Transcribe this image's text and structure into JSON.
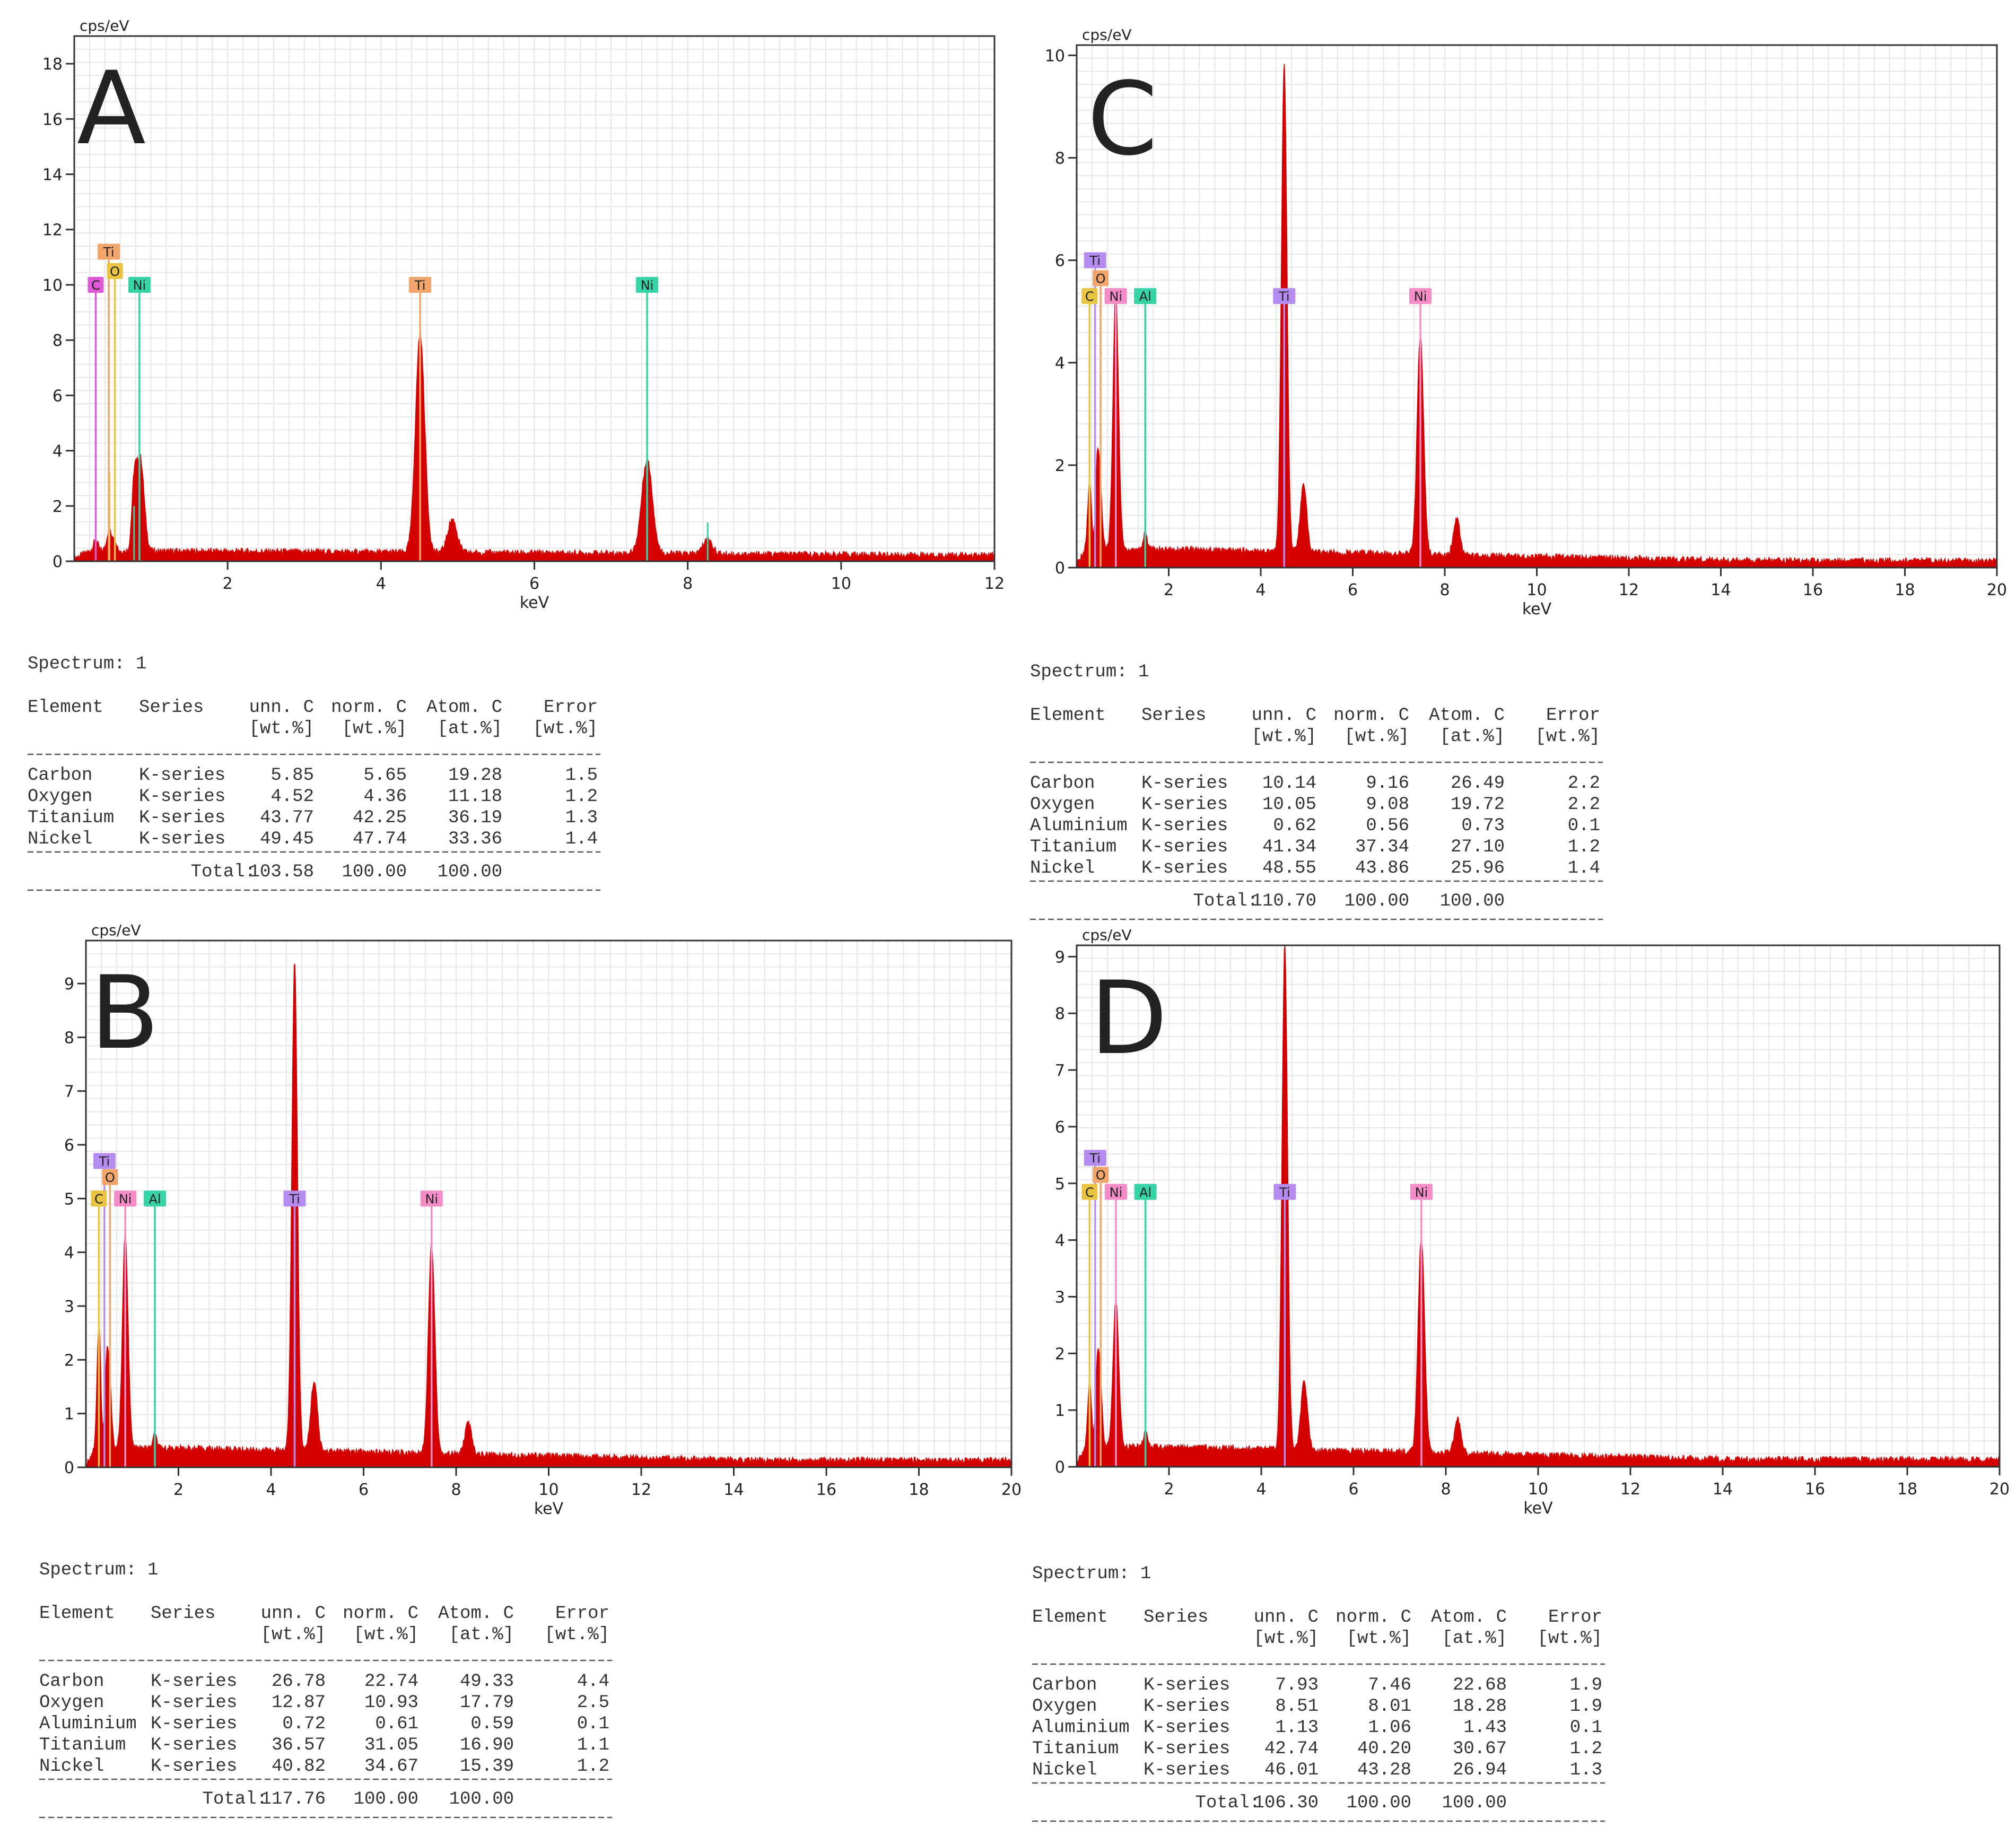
{
  "colors": {
    "spectrum_fill": "#d40000",
    "frame": "#333333",
    "grid": "#e6e6e6",
    "text": "#222222",
    "C": "#e05ad8",
    "O": "#e8c442",
    "Ti": "#f2a56a",
    "Ni": "#36d3a6",
    "Al": "#36d3a6",
    "Ti_bcd": "#b48cf0",
    "Ni_bcd": "#f58cc8"
  },
  "chart_data": [
    {
      "type": "area",
      "panel": "A",
      "ylabel": "cps/eV",
      "xlabel": "keV",
      "xlim": [
        0,
        12
      ],
      "ylim": [
        0,
        19
      ],
      "xticks": [
        2,
        4,
        6,
        8,
        10,
        12
      ],
      "yticks": [
        0,
        2,
        4,
        6,
        8,
        10,
        12,
        14,
        16,
        18
      ],
      "grid": true,
      "background_level": 0.25,
      "peaks": [
        {
          "x": 0.28,
          "height": 0.4,
          "width": 0.03
        },
        {
          "x": 0.45,
          "height": 0.7,
          "width": 0.03
        },
        {
          "x": 0.52,
          "height": 0.5,
          "width": 0.03
        },
        {
          "x": 0.78,
          "height": 2.0,
          "width": 0.03
        },
        {
          "x": 0.86,
          "height": 3.4,
          "width": 0.05
        },
        {
          "x": 4.51,
          "height": 7.9,
          "width": 0.06
        },
        {
          "x": 4.93,
          "height": 1.2,
          "width": 0.06
        },
        {
          "x": 7.47,
          "height": 3.4,
          "width": 0.07
        },
        {
          "x": 8.26,
          "height": 0.55,
          "width": 0.06
        }
      ],
      "markers": [
        {
          "el": "C",
          "x": 0.28,
          "line_top": 10.0,
          "label_y": 10.0,
          "color_key": "C"
        },
        {
          "el": "Ti",
          "x": 0.45,
          "line_top": 11.2,
          "label_y": 11.2,
          "color_key": "Ti"
        },
        {
          "el": "O",
          "x": 0.53,
          "line_top": 10.5,
          "label_y": 10.5,
          "color_key": "O"
        },
        {
          "el": "Ni",
          "x": 0.85,
          "line_top": 10.0,
          "label_y": 10.0,
          "color_key": "Ni"
        },
        {
          "el": "Ti",
          "x": 4.51,
          "line_top": 10.0,
          "label_y": 10.0,
          "color_key": "Ti"
        },
        {
          "el": "Ni",
          "x": 7.47,
          "line_top": 10.0,
          "label_y": 10.0,
          "color_key": "Ni"
        }
      ],
      "thin_lines": [
        {
          "x": 0.46,
          "top": 3.2,
          "color_key": "O"
        },
        {
          "x": 0.78,
          "top": 2.0,
          "color_key": "Ni"
        },
        {
          "x": 7.47,
          "top": 4.9,
          "color_key": "Ni"
        },
        {
          "x": 8.26,
          "top": 1.4,
          "color_key": "Ni"
        }
      ]
    },
    {
      "type": "area",
      "panel": "B",
      "ylabel": "cps/eV",
      "xlabel": "keV",
      "xlim": [
        0,
        20
      ],
      "ylim": [
        0,
        9.8
      ],
      "xticks": [
        2,
        4,
        6,
        8,
        10,
        12,
        14,
        16,
        18,
        20
      ],
      "yticks": [
        0,
        1,
        2,
        3,
        4,
        5,
        6,
        7,
        8,
        9
      ],
      "grid": true,
      "background_level": 0.3,
      "peaks": [
        {
          "x": 0.28,
          "height": 2.3,
          "width": 0.04
        },
        {
          "x": 0.45,
          "height": 1.6,
          "width": 0.04
        },
        {
          "x": 0.52,
          "height": 1.0,
          "width": 0.04
        },
        {
          "x": 0.85,
          "height": 4.0,
          "width": 0.06
        },
        {
          "x": 1.49,
          "height": 0.25,
          "width": 0.04
        },
        {
          "x": 4.51,
          "height": 9.1,
          "width": 0.06
        },
        {
          "x": 4.93,
          "height": 1.3,
          "width": 0.07
        },
        {
          "x": 7.47,
          "height": 3.9,
          "width": 0.07
        },
        {
          "x": 8.26,
          "height": 0.6,
          "width": 0.07
        }
      ],
      "markers": [
        {
          "el": "Ti",
          "x": 0.4,
          "line_top": 5.7,
          "label_y": 5.7,
          "color_key": "Ti_bcd"
        },
        {
          "el": "O",
          "x": 0.52,
          "line_top": 5.4,
          "label_y": 5.4,
          "color_key": "Ti"
        },
        {
          "el": "C",
          "x": 0.28,
          "line_top": 5.0,
          "label_y": 5.0,
          "color_key": "O"
        },
        {
          "el": "Ni",
          "x": 0.85,
          "line_top": 5.0,
          "label_y": 5.0,
          "color_key": "Ni_bcd"
        },
        {
          "el": "Al",
          "x": 1.49,
          "line_top": 5.0,
          "label_y": 5.0,
          "color_key": "Al"
        },
        {
          "el": "Ti",
          "x": 4.51,
          "line_top": 5.0,
          "label_y": 5.0,
          "color_key": "Ti_bcd"
        },
        {
          "el": "Ni",
          "x": 7.47,
          "line_top": 5.0,
          "label_y": 5.0,
          "color_key": "Ni_bcd"
        }
      ],
      "thin_lines": []
    },
    {
      "type": "area",
      "panel": "C",
      "ylabel": "cps/eV",
      "xlabel": "keV",
      "xlim": [
        0,
        20
      ],
      "ylim": [
        0,
        10.2
      ],
      "xticks": [
        2,
        4,
        6,
        8,
        10,
        12,
        14,
        16,
        18,
        20
      ],
      "yticks": [
        0,
        2,
        4,
        6,
        8,
        10
      ],
      "grid": true,
      "background_level": 0.3,
      "peaks": [
        {
          "x": 0.28,
          "height": 1.3,
          "width": 0.04
        },
        {
          "x": 0.45,
          "height": 1.7,
          "width": 0.04
        },
        {
          "x": 0.52,
          "height": 1.0,
          "width": 0.04
        },
        {
          "x": 0.85,
          "height": 5.0,
          "width": 0.06
        },
        {
          "x": 1.49,
          "height": 0.35,
          "width": 0.04
        },
        {
          "x": 4.51,
          "height": 9.5,
          "width": 0.06
        },
        {
          "x": 4.93,
          "height": 1.3,
          "width": 0.07
        },
        {
          "x": 7.47,
          "height": 4.3,
          "width": 0.07
        },
        {
          "x": 8.26,
          "height": 0.7,
          "width": 0.07
        }
      ],
      "markers": [
        {
          "el": "Ti",
          "x": 0.4,
          "line_top": 6.0,
          "label_y": 6.0,
          "color_key": "Ti_bcd"
        },
        {
          "el": "O",
          "x": 0.52,
          "line_top": 5.65,
          "label_y": 5.65,
          "color_key": "Ti"
        },
        {
          "el": "C",
          "x": 0.28,
          "line_top": 5.3,
          "label_y": 5.3,
          "color_key": "O"
        },
        {
          "el": "Ni",
          "x": 0.85,
          "line_top": 5.3,
          "label_y": 5.3,
          "color_key": "Ni_bcd"
        },
        {
          "el": "Al",
          "x": 1.49,
          "line_top": 5.3,
          "label_y": 5.3,
          "color_key": "Al"
        },
        {
          "el": "Ti",
          "x": 4.51,
          "line_top": 5.3,
          "label_y": 5.3,
          "color_key": "Ti_bcd"
        },
        {
          "el": "Ni",
          "x": 7.47,
          "line_top": 5.3,
          "label_y": 5.3,
          "color_key": "Ni_bcd"
        }
      ],
      "thin_lines": []
    },
    {
      "type": "area",
      "panel": "D",
      "ylabel": "cps/eV",
      "xlabel": "keV",
      "xlim": [
        0,
        20
      ],
      "ylim": [
        0,
        9.2
      ],
      "xticks": [
        2,
        4,
        6,
        8,
        10,
        12,
        14,
        16,
        18,
        20
      ],
      "yticks": [
        0,
        1,
        2,
        3,
        4,
        5,
        6,
        7,
        8,
        9
      ],
      "grid": true,
      "background_level": 0.3,
      "peaks": [
        {
          "x": 0.28,
          "height": 1.1,
          "width": 0.04
        },
        {
          "x": 0.45,
          "height": 1.5,
          "width": 0.04
        },
        {
          "x": 0.52,
          "height": 0.9,
          "width": 0.04
        },
        {
          "x": 0.85,
          "height": 2.6,
          "width": 0.06
        },
        {
          "x": 1.49,
          "height": 0.3,
          "width": 0.04
        },
        {
          "x": 4.51,
          "height": 8.9,
          "width": 0.06
        },
        {
          "x": 4.93,
          "height": 1.2,
          "width": 0.07
        },
        {
          "x": 7.47,
          "height": 3.8,
          "width": 0.07
        },
        {
          "x": 8.26,
          "height": 0.6,
          "width": 0.07
        }
      ],
      "markers": [
        {
          "el": "Ti",
          "x": 0.4,
          "line_top": 5.45,
          "label_y": 5.45,
          "color_key": "Ti_bcd"
        },
        {
          "el": "O",
          "x": 0.52,
          "line_top": 5.15,
          "label_y": 5.15,
          "color_key": "Ti"
        },
        {
          "el": "C",
          "x": 0.28,
          "line_top": 4.85,
          "label_y": 4.85,
          "color_key": "O"
        },
        {
          "el": "Ni",
          "x": 0.85,
          "line_top": 4.85,
          "label_y": 4.85,
          "color_key": "Ni_bcd"
        },
        {
          "el": "Al",
          "x": 1.49,
          "line_top": 4.85,
          "label_y": 4.85,
          "color_key": "Al"
        },
        {
          "el": "Ti",
          "x": 4.51,
          "line_top": 4.85,
          "label_y": 4.85,
          "color_key": "Ti_bcd"
        },
        {
          "el": "Ni",
          "x": 7.47,
          "line_top": 4.85,
          "label_y": 4.85,
          "color_key": "Ni_bcd"
        }
      ],
      "thin_lines": []
    },
    {
      "type": "table",
      "panel": "A",
      "spectrum_label": "Spectrum: 1",
      "headers": [
        [
          "Element",
          "Series",
          "unn. C",
          "norm. C",
          "Atom. C",
          "Error"
        ],
        [
          "",
          "",
          "[wt.%]",
          "[wt.%]",
          "[at.%]",
          "[wt.%]"
        ]
      ],
      "rows": [
        [
          "Carbon",
          "K-series",
          "5.85",
          "5.65",
          "19.28",
          "1.5"
        ],
        [
          "Oxygen",
          "K-series",
          "4.52",
          "4.36",
          "11.18",
          "1.2"
        ],
        [
          "Titanium",
          "K-series",
          "43.77",
          "42.25",
          "36.19",
          "1.3"
        ],
        [
          "Nickel",
          "K-series",
          "49.45",
          "47.74",
          "33.36",
          "1.4"
        ]
      ],
      "total": [
        "Total:",
        "103.58",
        "100.00",
        "100.00"
      ]
    },
    {
      "type": "table",
      "panel": "B",
      "spectrum_label": "Spectrum: 1",
      "headers": [
        [
          "Element",
          "Series",
          "unn. C",
          "norm. C",
          "Atom. C",
          "Error"
        ],
        [
          "",
          "",
          "[wt.%]",
          "[wt.%]",
          "[at.%]",
          "[wt.%]"
        ]
      ],
      "rows": [
        [
          "Carbon",
          "K-series",
          "26.78",
          "22.74",
          "49.33",
          "4.4"
        ],
        [
          "Oxygen",
          "K-series",
          "12.87",
          "10.93",
          "17.79",
          "2.5"
        ],
        [
          "Aluminium",
          "K-series",
          "0.72",
          "0.61",
          "0.59",
          "0.1"
        ],
        [
          "Titanium",
          "K-series",
          "36.57",
          "31.05",
          "16.90",
          "1.1"
        ],
        [
          "Nickel",
          "K-series",
          "40.82",
          "34.67",
          "15.39",
          "1.2"
        ]
      ],
      "total": [
        "Total:",
        "117.76",
        "100.00",
        "100.00"
      ]
    },
    {
      "type": "table",
      "panel": "C",
      "spectrum_label": "Spectrum: 1",
      "headers": [
        [
          "Element",
          "Series",
          "unn. C",
          "norm. C",
          "Atom. C",
          "Error"
        ],
        [
          "",
          "",
          "[wt.%]",
          "[wt.%]",
          "[at.%]",
          "[wt.%]"
        ]
      ],
      "rows": [
        [
          "Carbon",
          "K-series",
          "10.14",
          "9.16",
          "26.49",
          "2.2"
        ],
        [
          "Oxygen",
          "K-series",
          "10.05",
          "9.08",
          "19.72",
          "2.2"
        ],
        [
          "Aluminium",
          "K-series",
          "0.62",
          "0.56",
          "0.73",
          "0.1"
        ],
        [
          "Titanium",
          "K-series",
          "41.34",
          "37.34",
          "27.10",
          "1.2"
        ],
        [
          "Nickel",
          "K-series",
          "48.55",
          "43.86",
          "25.96",
          "1.4"
        ]
      ],
      "total": [
        "Total:",
        "110.70",
        "100.00",
        "100.00"
      ]
    },
    {
      "type": "table",
      "panel": "D",
      "spectrum_label": "Spectrum: 1",
      "headers": [
        [
          "Element",
          "Series",
          "unn. C",
          "norm. C",
          "Atom. C",
          "Error"
        ],
        [
          "",
          "",
          "[wt.%]",
          "[wt.%]",
          "[at.%]",
          "[wt.%]"
        ]
      ],
      "rows": [
        [
          "Carbon",
          "K-series",
          "7.93",
          "7.46",
          "22.68",
          "1.9"
        ],
        [
          "Oxygen",
          "K-series",
          "8.51",
          "8.01",
          "18.28",
          "1.9"
        ],
        [
          "Aluminium",
          "K-series",
          "1.13",
          "1.06",
          "1.43",
          "0.1"
        ],
        [
          "Titanium",
          "K-series",
          "42.74",
          "40.20",
          "30.67",
          "1.2"
        ],
        [
          "Nickel",
          "K-series",
          "46.01",
          "43.28",
          "26.94",
          "1.3"
        ]
      ],
      "total": [
        "Total:",
        "106.30",
        "100.00",
        "100.00"
      ]
    }
  ]
}
